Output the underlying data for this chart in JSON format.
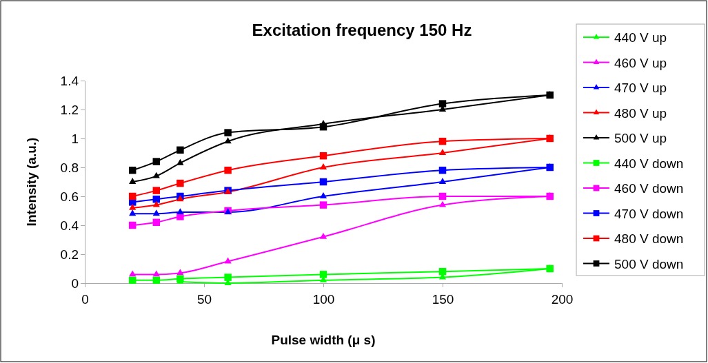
{
  "chart_data": {
    "type": "line",
    "title": "Excitation frequency 150 Hz",
    "xlabel": "Pulse width (μ s)",
    "ylabel": "Intensity (a.u.)",
    "x": [
      20,
      30,
      40,
      60,
      100,
      150,
      195
    ],
    "xlim": [
      0,
      200
    ],
    "xticks": [
      0,
      50,
      100,
      150,
      200
    ],
    "ylim": [
      0,
      1.4
    ],
    "yticks": [
      0,
      {
        "value": 0.2,
        "label": "0.2"
      },
      {
        "value": 0.4,
        "label": "0.4"
      },
      {
        "value": 0.6,
        "label": "0.6"
      },
      {
        "value": 0.8,
        "label": "0.8"
      },
      1,
      {
        "value": 1.2,
        "label": "1.2"
      },
      {
        "value": 1.4,
        "label": "1.4"
      }
    ],
    "legend": "right",
    "series": [
      {
        "name": "440 V up",
        "color": "#00ff00",
        "marker": "triangle",
        "values": [
          null,
          null,
          0.01,
          0,
          0.02,
          0.04,
          0.1
        ]
      },
      {
        "name": "460 V up",
        "color": "#ff00ff",
        "marker": "triangle",
        "values": [
          0.06,
          0.06,
          0.07,
          0.15,
          0.32,
          0.54,
          0.6
        ]
      },
      {
        "name": "470 V up",
        "color": "#0000ff",
        "marker": "triangle",
        "values": [
          0.48,
          0.48,
          0.49,
          0.49,
          0.6,
          0.7,
          0.8
        ]
      },
      {
        "name": "480 V up",
        "color": "#ff0000",
        "marker": "triangle",
        "values": [
          0.52,
          0.54,
          0.58,
          0.63,
          0.8,
          0.9,
          1.0
        ]
      },
      {
        "name": "500 V up",
        "color": "#000000",
        "marker": "triangle",
        "values": [
          0.7,
          0.74,
          0.83,
          0.98,
          1.1,
          1.2,
          1.3
        ]
      },
      {
        "name": "440 V down",
        "color": "#00ff00",
        "marker": "square",
        "values": [
          0.02,
          0.02,
          0.03,
          0.04,
          0.06,
          0.08,
          0.1
        ]
      },
      {
        "name": "460 V down",
        "color": "#ff00ff",
        "marker": "square",
        "values": [
          0.4,
          0.42,
          0.46,
          0.5,
          0.54,
          0.6,
          0.6
        ]
      },
      {
        "name": "470 V down",
        "color": "#0000ff",
        "marker": "square",
        "values": [
          0.56,
          0.58,
          0.6,
          0.64,
          0.7,
          0.78,
          0.8
        ]
      },
      {
        "name": "480 V down",
        "color": "#ff0000",
        "marker": "square",
        "values": [
          0.6,
          0.64,
          0.69,
          0.78,
          0.88,
          0.98,
          1.0
        ]
      },
      {
        "name": "500 V down",
        "color": "#000000",
        "marker": "square",
        "values": [
          0.78,
          0.84,
          0.92,
          1.04,
          1.08,
          1.24,
          1.3
        ]
      }
    ]
  }
}
